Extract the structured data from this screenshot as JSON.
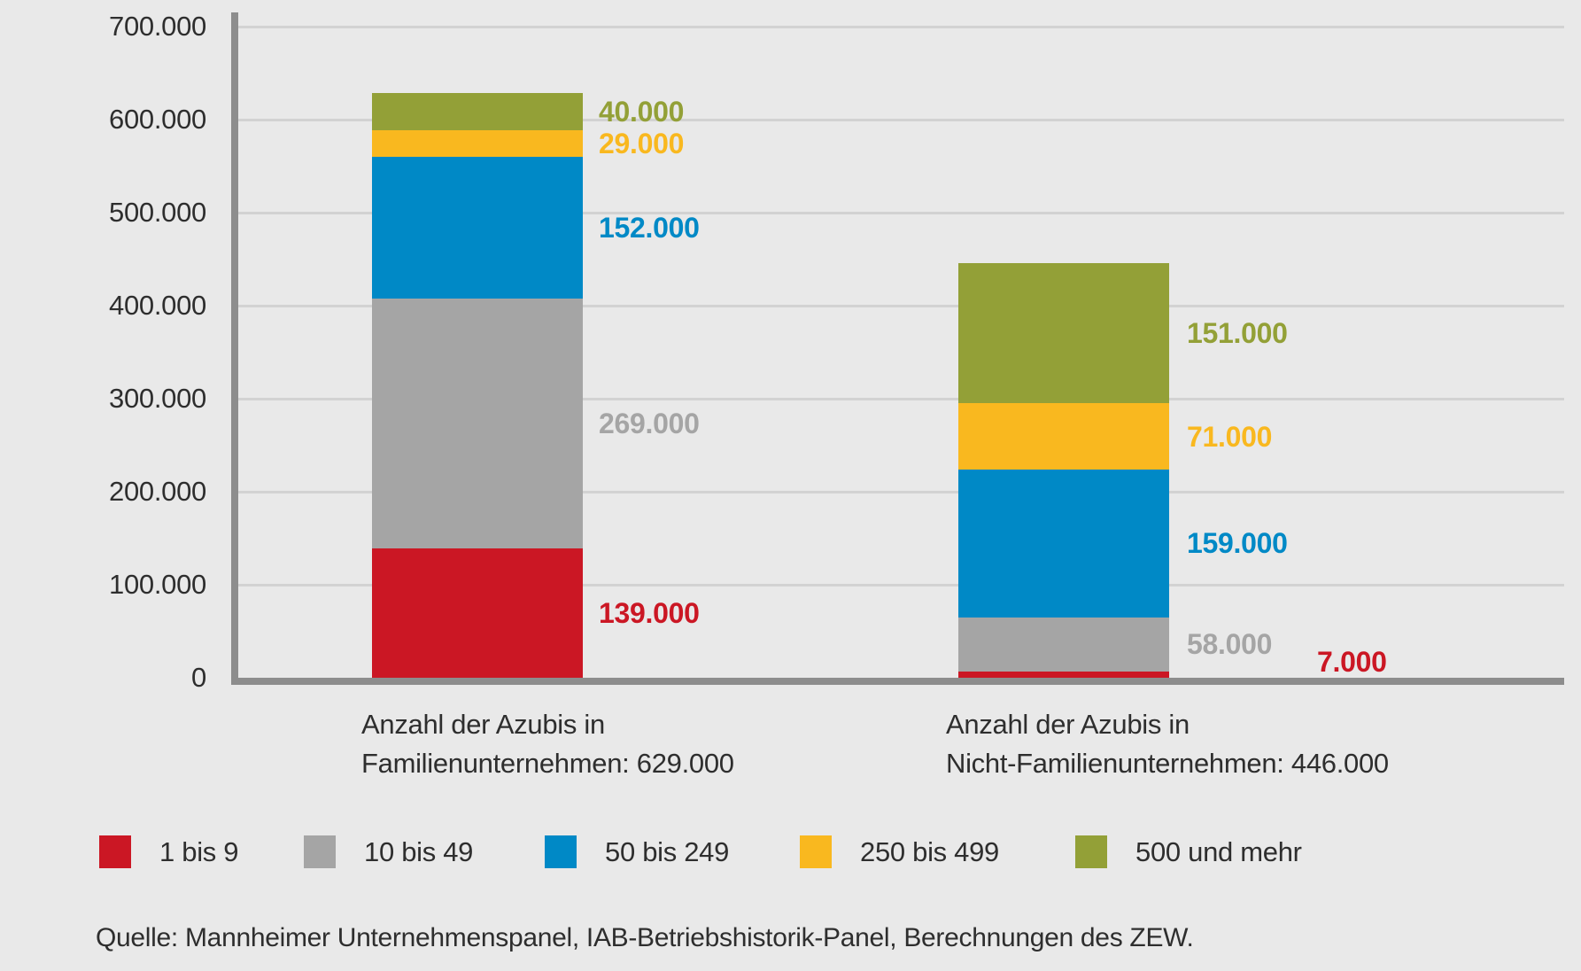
{
  "colors": {
    "background": "#e9e9e9",
    "axis": "#8d8d8d",
    "gridline": "#d2d2d2",
    "text": "#2e2e2e"
  },
  "chart_data": {
    "type": "bar",
    "subtype": "stacked-vertical",
    "title": "",
    "grid": true,
    "legend_position": "bottom",
    "y_axis": {
      "min": 0,
      "max": 700000,
      "tick_step": 100000,
      "tick_labels": [
        "0",
        "100.000",
        "200.000",
        "300.000",
        "400.000",
        "500.000",
        "600.000",
        "700.000"
      ]
    },
    "categories": [
      {
        "label_line1": "Anzahl der Azubis in",
        "label_line2": "Familienunternehmen: 629.000",
        "total": 629000,
        "total_label": "629.000"
      },
      {
        "label_line1": "Anzahl der Azubis in",
        "label_line2": "Nicht-Familienunternehmen: 446.000",
        "total": 446000,
        "total_label": "446.000"
      }
    ],
    "series": [
      {
        "name": "1 bis 9",
        "color": "#cb1724",
        "values": [
          139000,
          7000
        ],
        "value_labels": [
          "139.000",
          "7.000"
        ]
      },
      {
        "name": "10 bis 49",
        "color": "#a5a5a5",
        "values": [
          269000,
          58000
        ],
        "value_labels": [
          "269.000",
          "58.000"
        ]
      },
      {
        "name": "50 bis 249",
        "color": "#0089c6",
        "values": [
          152000,
          159000
        ],
        "value_labels": [
          "152.000",
          "159.000"
        ]
      },
      {
        "name": "250 bis 499",
        "color": "#f9b81f",
        "values": [
          29000,
          71000
        ],
        "value_labels": [
          "29.000",
          "71.000"
        ]
      },
      {
        "name": "500 und mehr",
        "color": "#93a037",
        "values": [
          40000,
          151000
        ],
        "value_labels": [
          "40.000",
          "151.000"
        ]
      }
    ],
    "legend": [
      "1 bis 9",
      "10 bis 49",
      "50 bis 249",
      "250 bis 499",
      "500 und mehr"
    ],
    "source": "Quelle: Mannheimer Unternehmenspanel, IAB-Betriebshistorik-Panel, Berechnungen des ZEW."
  }
}
